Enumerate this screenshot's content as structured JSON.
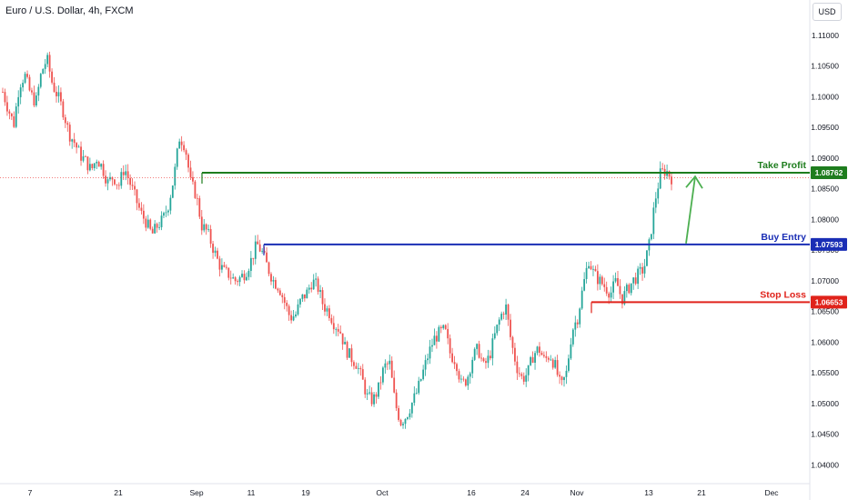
{
  "header": {
    "symbol_title": "Euro / U.S. Dollar, 4h, FXCM",
    "currency_button": "USD"
  },
  "chart_data": {
    "type": "candlestick",
    "title": "Euro / U.S. Dollar, 4h, FXCM",
    "y_range": [
      1.038,
      1.1125
    ],
    "y_ticks": [
      "1.11000",
      "1.10500",
      "1.10000",
      "1.09500",
      "1.09000",
      "1.08500",
      "1.08000",
      "1.07500",
      "1.07000",
      "1.06500",
      "1.06000",
      "1.05500",
      "1.05000",
      "1.04500",
      "1.04000"
    ],
    "x_ticks": [
      "7",
      "21",
      "Sep",
      "11",
      "19",
      "Oct",
      "16",
      "24",
      "Nov",
      "13",
      "21",
      "Dec"
    ],
    "path_points": [
      [
        1.1008,
        1.098,
        1.0955,
        1.102,
        1.1035,
        1.1005,
        1.099,
        1.104,
        1.1062,
        1.102,
        1.1,
        1.0975,
        1.094,
        1.0925,
        1.0905,
        1.0895,
        1.088,
        1.09,
        1.0885,
        1.086,
        1.087,
        1.0855,
        1.0885,
        1.086,
        1.0835,
        1.081,
        1.0795,
        1.0775,
        1.079,
        1.08,
        1.0825,
        1.087,
        1.0935,
        1.092,
        1.086,
        1.084,
        1.079,
        1.078,
        1.0755,
        1.073,
        1.0715,
        1.071,
        1.07,
        1.0705,
        1.0715,
        1.0735,
        1.076,
        1.0745,
        1.072,
        1.07,
        1.069,
        1.0665,
        1.064,
        1.0645,
        1.067,
        1.068,
        1.07,
        1.069,
        1.066,
        1.065,
        1.063,
        1.062,
        1.059,
        1.0575,
        1.0565,
        1.054,
        1.051,
        1.0505,
        1.0525,
        1.056,
        1.0565,
        1.05,
        1.047,
        1.048,
        1.05,
        1.052,
        1.055,
        1.058,
        1.0605,
        1.0615,
        1.062,
        1.058,
        1.057,
        1.053,
        1.054,
        1.0575,
        1.059,
        1.056,
        1.0575,
        1.061,
        1.064,
        1.066,
        1.06,
        1.056,
        1.054,
        1.055,
        1.058,
        1.059,
        1.057,
        1.058,
        1.056,
        1.0525,
        1.055,
        1.062,
        1.064,
        1.069,
        1.0735,
        1.071,
        1.07,
        1.069,
        1.068,
        1.07,
        1.067,
        1.0685,
        1.07,
        1.071,
        1.072,
        1.076,
        1.083,
        1.0875,
        1.088,
        1.0868
      ]
    ],
    "levels": [
      {
        "label": "Take Profit",
        "price": 1.08762,
        "price_text": "1.08762",
        "color": "#1e7d1e"
      },
      {
        "label": "Buy Entry",
        "price": 1.07593,
        "price_text": "1.07593",
        "color": "#1a2eb5"
      },
      {
        "label": "Stop Loss",
        "price": 1.06653,
        "price_text": "1.06653",
        "color": "#e0231b"
      }
    ],
    "last_price": 1.0868,
    "colors": {
      "up": "#26a69a",
      "down": "#ef5350",
      "target_arrow": "#4caf50"
    }
  }
}
